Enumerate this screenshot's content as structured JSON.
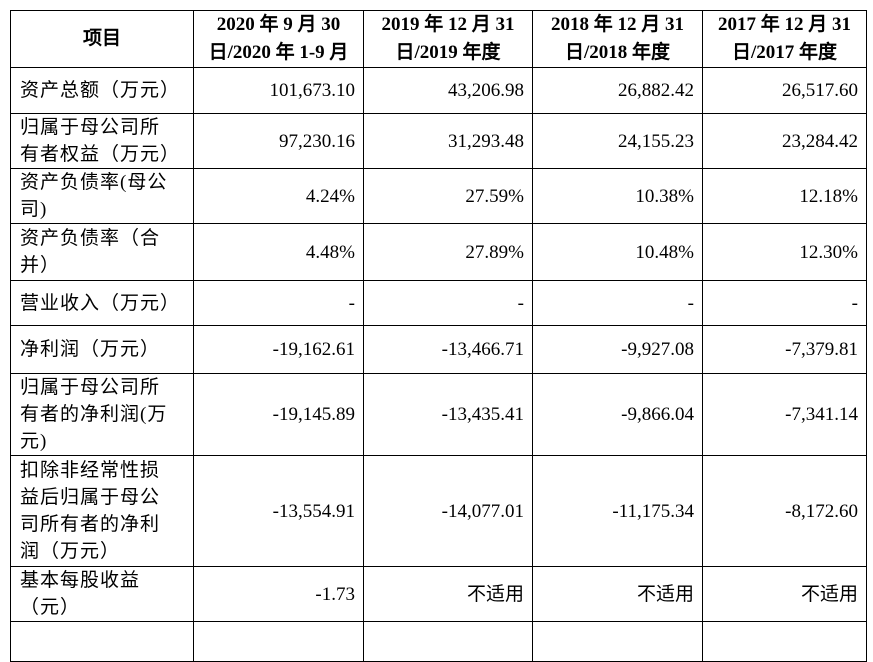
{
  "table": {
    "headers": [
      [
        "项目"
      ],
      [
        "2020 年 9 月 30",
        "日/2020 年 1-9 月"
      ],
      [
        "2019 年 12 月 31",
        "日/2019 年度"
      ],
      [
        "2018 年 12 月 31",
        "日/2018 年度"
      ],
      [
        "2017 年 12 月 31",
        "日/2017 年度"
      ]
    ],
    "rows": [
      {
        "label": [
          "资产总额（万元）"
        ],
        "values": [
          "101,673.10",
          "43,206.98",
          "26,882.42",
          "26,517.60"
        ]
      },
      {
        "label": [
          "归属于母公司所",
          "有者权益（万元）"
        ],
        "values": [
          "97,230.16",
          "31,293.48",
          "24,155.23",
          "23,284.42"
        ]
      },
      {
        "label": [
          "资产负债率(母公",
          "司)"
        ],
        "values": [
          "4.24%",
          "27.59%",
          "10.38%",
          "12.18%"
        ]
      },
      {
        "label": [
          "资产负债率（合",
          "并）"
        ],
        "values": [
          "4.48%",
          "27.89%",
          "10.48%",
          "12.30%"
        ]
      },
      {
        "label": [
          "营业收入（万元）"
        ],
        "values": [
          "-",
          "-",
          "-",
          "-"
        ]
      },
      {
        "label": [
          "净利润（万元）"
        ],
        "values": [
          "-19,162.61",
          "-13,466.71",
          "-9,927.08",
          "-7,379.81"
        ]
      },
      {
        "label": [
          "归属于母公司所",
          "有者的净利润(万",
          "元)"
        ],
        "values": [
          "-19,145.89",
          "-13,435.41",
          "-9,866.04",
          "-7,341.14"
        ]
      },
      {
        "label": [
          "扣除非经常性损",
          "益后归属于母公",
          "司所有者的净利",
          "润（万元）"
        ],
        "values": [
          "-13,554.91",
          "-14,077.01",
          "-11,175.34",
          "-8,172.60"
        ]
      },
      {
        "label": [
          "基本每股收益",
          "（元）"
        ],
        "values": [
          "-1.73",
          "不适用",
          "不适用",
          "不适用"
        ]
      }
    ]
  }
}
